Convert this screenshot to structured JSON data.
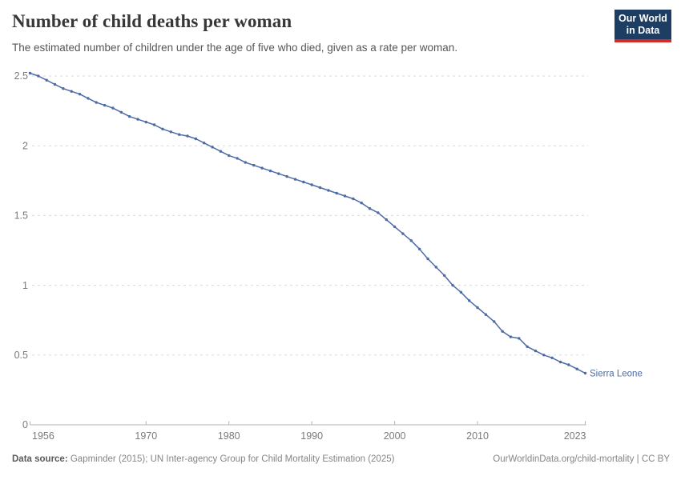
{
  "header": {
    "title": "Number of child deaths per woman",
    "subtitle": "The estimated number of children under the age of five who died, given as a rate per woman."
  },
  "logo": {
    "line1": "Our World",
    "line2": "in Data"
  },
  "chart_data": {
    "type": "line",
    "title": "Number of child deaths per woman",
    "xlabel": "",
    "ylabel": "",
    "xlim": [
      1956,
      2023
    ],
    "ylim": [
      0,
      2.5
    ],
    "xticks": [
      1956,
      1970,
      1980,
      1990,
      2000,
      2010,
      2023
    ],
    "yticks": [
      0,
      0.5,
      1,
      1.5,
      2,
      2.5
    ],
    "grid": "horizontal-dashed",
    "legend_position": "end-of-line-label",
    "series": [
      {
        "name": "Sierra Leone",
        "color": "#4C6BA5",
        "x": [
          1956,
          1957,
          1958,
          1959,
          1960,
          1961,
          1962,
          1963,
          1964,
          1965,
          1966,
          1967,
          1968,
          1969,
          1970,
          1971,
          1972,
          1973,
          1974,
          1975,
          1976,
          1977,
          1978,
          1979,
          1980,
          1981,
          1982,
          1983,
          1984,
          1985,
          1986,
          1987,
          1988,
          1989,
          1990,
          1991,
          1992,
          1993,
          1994,
          1995,
          1996,
          1997,
          1998,
          1999,
          2000,
          2001,
          2002,
          2003,
          2004,
          2005,
          2006,
          2007,
          2008,
          2009,
          2010,
          2011,
          2012,
          2013,
          2014,
          2015,
          2016,
          2017,
          2018,
          2019,
          2020,
          2021,
          2022,
          2023
        ],
        "values": [
          2.52,
          2.5,
          2.47,
          2.44,
          2.41,
          2.39,
          2.37,
          2.34,
          2.31,
          2.29,
          2.27,
          2.24,
          2.21,
          2.19,
          2.17,
          2.15,
          2.12,
          2.1,
          2.08,
          2.07,
          2.05,
          2.02,
          1.99,
          1.96,
          1.93,
          1.91,
          1.88,
          1.86,
          1.84,
          1.82,
          1.8,
          1.78,
          1.76,
          1.74,
          1.72,
          1.7,
          1.68,
          1.66,
          1.64,
          1.62,
          1.59,
          1.55,
          1.52,
          1.47,
          1.42,
          1.37,
          1.32,
          1.26,
          1.19,
          1.13,
          1.07,
          1.0,
          0.95,
          0.89,
          0.84,
          0.79,
          0.74,
          0.67,
          0.63,
          0.62,
          0.56,
          0.53,
          0.5,
          0.48,
          0.45,
          0.43,
          0.4,
          0.37
        ]
      }
    ]
  },
  "colors": {
    "line": "#4C6BA5",
    "title_text": "#383636",
    "subtitle_text": "#565656",
    "axis_text": "#7a7a7a",
    "gridline": "#dadada",
    "axis_line": "#b3b3b3",
    "logo_bg": "#1d3d63",
    "logo_bar": "#d42b27"
  },
  "footer": {
    "source_label": "Data source:",
    "source_text": " Gapminder (2015); UN Inter-agency Group for Child Mortality Estimation (2025)",
    "license_text": "OurWorldinData.org/child-mortality | CC BY"
  }
}
